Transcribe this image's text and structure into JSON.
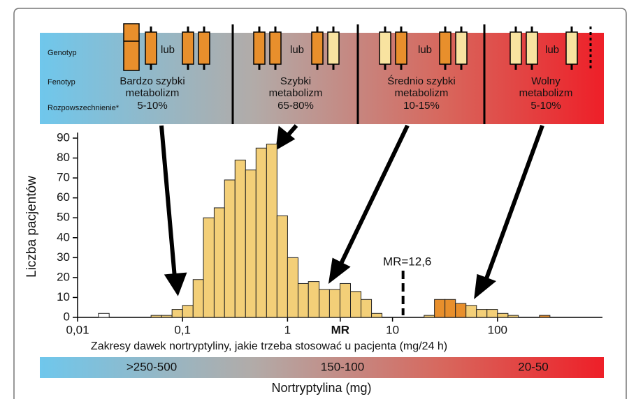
{
  "panel": {
    "row_labels": [
      "Genotyp",
      "Fenotyp",
      "Rozpowszechnienie*"
    ],
    "connector": "lub",
    "groups": [
      {
        "phenotype": [
          "Bardzo szybki",
          "metabolizm"
        ],
        "prevalence": "5-10%"
      },
      {
        "phenotype": [
          "Szybki",
          "metabolizm"
        ],
        "prevalence": "65-80%"
      },
      {
        "phenotype": [
          "Średnio szybki",
          "metabolizm"
        ],
        "prevalence": "10-15%"
      },
      {
        "phenotype": [
          "Wolny",
          "metabolizm"
        ],
        "prevalence": "5-10%"
      }
    ]
  },
  "chart_data": {
    "type": "histogram",
    "y_label": "Liczba pacjentów",
    "x_label": "Zakresy dawek nortryptyliny, jakie trzeba stosować u pacjenta (mg/24 h)",
    "log_x": true,
    "xlim": [
      0.01,
      1000
    ],
    "xticks": [
      {
        "value": 0.01,
        "label": "0,01"
      },
      {
        "value": 0.1,
        "label": "0,1"
      },
      1,
      10,
      100
    ],
    "ylim": [
      0,
      90
    ],
    "yticks": [
      0,
      10,
      20,
      30,
      40,
      50,
      60,
      70,
      80,
      90
    ],
    "bins": [
      0.0158,
      0.02,
      0.0251,
      0.0316,
      0.0398,
      0.0501,
      0.0631,
      0.0794,
      0.1,
      0.126,
      0.158,
      0.2,
      0.251,
      0.316,
      0.398,
      0.501,
      0.631,
      0.794,
      1,
      1.26,
      1.58,
      2,
      2.51,
      3.16,
      3.98,
      5.01,
      6.31,
      7.94,
      10,
      12.6,
      15.8,
      20,
      25.1,
      31.6,
      39.8,
      50.1,
      63.1,
      79.4,
      100,
      126,
      158,
      200,
      251,
      316
    ],
    "counts": [
      2,
      0,
      0,
      0,
      0,
      1,
      1,
      4,
      6,
      19,
      50,
      55,
      69,
      79,
      74,
      85,
      87,
      51,
      30,
      17,
      18,
      14,
      14,
      17,
      13,
      9,
      2,
      0,
      0,
      0,
      0,
      1,
      9,
      9,
      7,
      6,
      4,
      4,
      2,
      1,
      0,
      0,
      1
    ],
    "bar_colors": [
      "#ffffff",
      "#f3cf78",
      "#f3cf78",
      "#f3cf78",
      "#f3cf78",
      "#f3cf78",
      "#f3cf78",
      "#f3cf78",
      "#f3cf78",
      "#f3cf78",
      "#f3cf78",
      "#f3cf78",
      "#f3cf78",
      "#f3cf78",
      "#f3cf78",
      "#f3cf78",
      "#f3cf78",
      "#f3cf78",
      "#f3cf78",
      "#f3cf78",
      "#f3cf78",
      "#f3cf78",
      "#f3cf78",
      "#f3cf78",
      "#f3cf78",
      "#f3cf78",
      "#f3cf78",
      "#f3cf78",
      "#f3cf78",
      "#f3cf78",
      "#f3cf78",
      "#f3cf78",
      "#e88f2c",
      "#e88f2c",
      "#e88f2c",
      "#f3cf78",
      "#f3cf78",
      "#f3cf78",
      "#f3cf78",
      "#f3cf78",
      "#f3cf78",
      "#f3cf78",
      "#e88f2c"
    ],
    "mr_tick": {
      "value": 3.18,
      "label": "MR"
    },
    "mr_line": {
      "value": 12.6,
      "label": "MR=12,6"
    }
  },
  "dose_bar": {
    "labels": [
      ">250-500",
      "150-100",
      "20-50"
    ],
    "title": "Nortryptylina (mg)"
  }
}
